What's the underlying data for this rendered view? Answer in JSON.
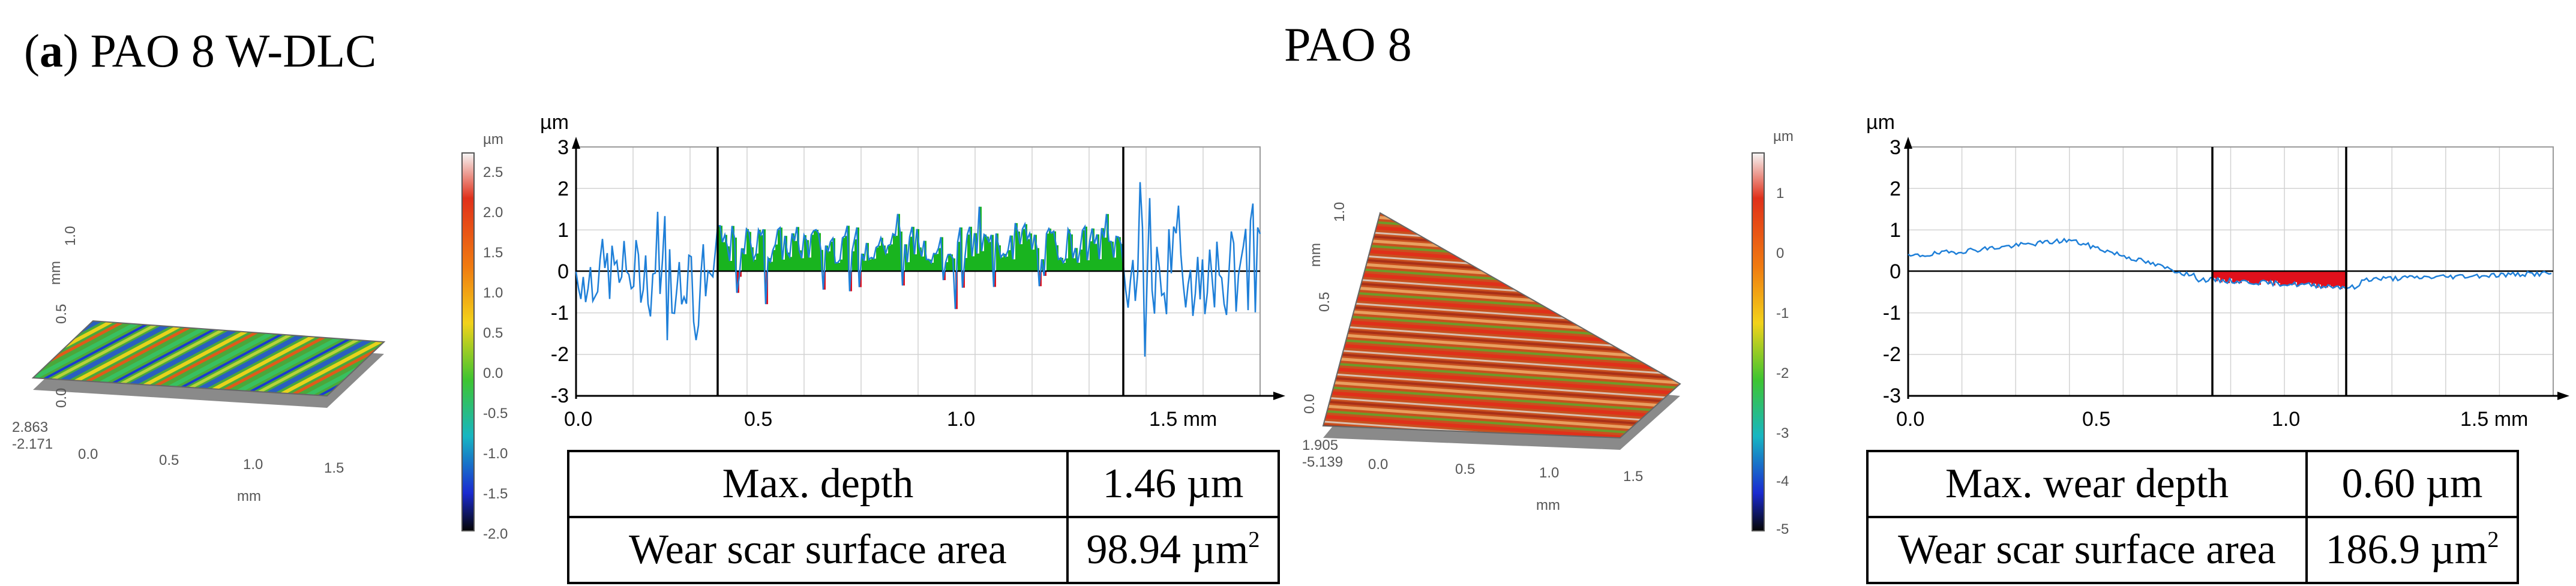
{
  "figure": {
    "label_letter": "a",
    "label_open": "(",
    "label_rest": ") PAO 8 W-DLC",
    "title": "PAO 8"
  },
  "left": {
    "surface3d": {
      "unit": "µm",
      "colorbar_ticks": [
        "2.5",
        "2.0",
        "1.5",
        "1.0",
        "0.5",
        "0.0",
        "-0.5",
        "-1.0",
        "-1.5",
        "-2.0"
      ],
      "z_top": "2.863",
      "z_bottom": "-2.171",
      "x_label": "mm",
      "y_label": "mm",
      "x_ticks": [
        "0.0",
        "0.5",
        "1.0",
        "1.5"
      ],
      "y_ticks": [
        "0.0",
        "0.5",
        "1.0"
      ]
    },
    "profile": {
      "y_unit": "µm",
      "y_ticks": [
        "3",
        "2",
        "1",
        "0",
        "-1",
        "-2",
        "-3"
      ],
      "x_ticks": [
        "0.0",
        "0.5",
        "1.0",
        "1.5 mm"
      ]
    },
    "table": [
      {
        "label": "Max. depth",
        "value": "1.46 µm",
        "sup": ""
      },
      {
        "label": "Wear scar surface area",
        "value": "98.94 µm",
        "sup": "2"
      }
    ]
  },
  "right": {
    "surface3d": {
      "unit": "µm",
      "colorbar_ticks": [
        "1",
        "0",
        "-1",
        "-2",
        "-3",
        "-4",
        "-5"
      ],
      "z_top": "1.905",
      "z_bottom": "-5.139",
      "x_label": "mm",
      "y_label": "mm",
      "x_ticks": [
        "0.0",
        "0.5",
        "1.0",
        "1.5"
      ],
      "y_ticks": [
        "0.0",
        "0.5",
        "1.0"
      ]
    },
    "profile": {
      "y_unit": "µm",
      "y_ticks": [
        "3",
        "2",
        "1",
        "0",
        "-1",
        "-2",
        "-3"
      ],
      "x_ticks": [
        "0.0",
        "0.5",
        "1.0",
        "1.5 mm"
      ]
    },
    "table": [
      {
        "label": "Max. wear depth",
        "value": "0.60 µm",
        "sup": ""
      },
      {
        "label": "Wear scar surface area",
        "value": "186.9 µm",
        "sup": "2"
      }
    ]
  },
  "colors": {
    "profile_line": "#1e7fd8",
    "fill_above": "#19b41f",
    "fill_below": "#e0101c",
    "grid": "#d2d2d2"
  }
}
